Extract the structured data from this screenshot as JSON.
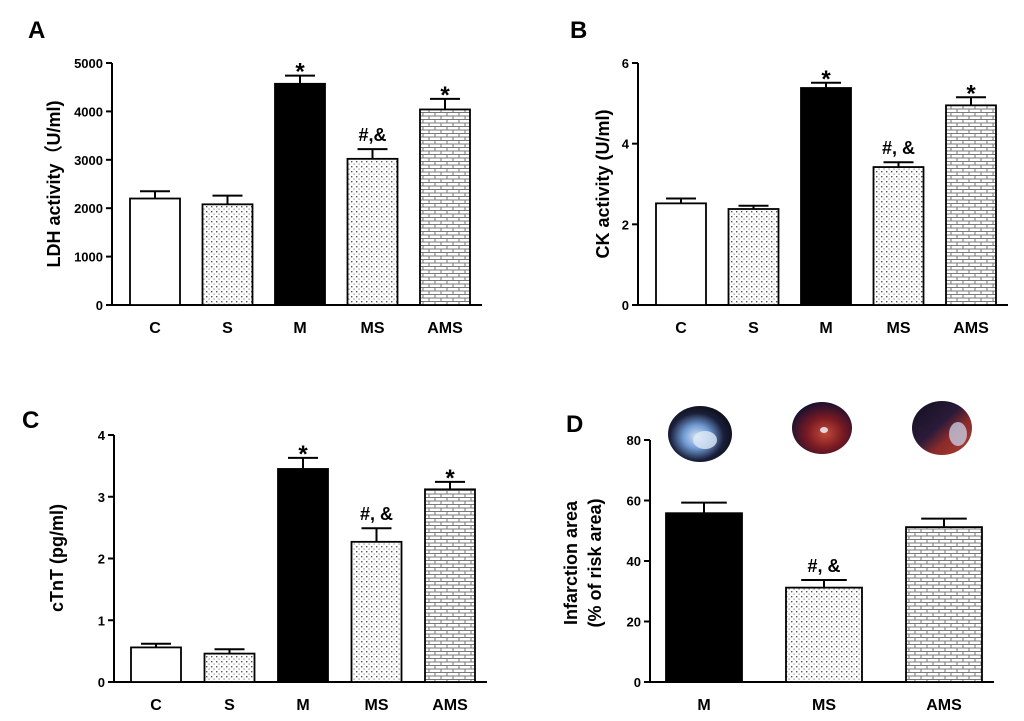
{
  "chart_data": [
    {
      "panel": "A",
      "type": "bar",
      "ylabel": "LDH activity（U/ml)",
      "categories": [
        "C",
        "S",
        "M",
        "MS",
        "AMS"
      ],
      "values": [
        2200,
        2080,
        4570,
        3020,
        4040
      ],
      "errors": [
        150,
        180,
        170,
        200,
        220
      ],
      "annotations": [
        "",
        "",
        "*",
        "#,&",
        "*"
      ],
      "ylim": [
        0,
        5000
      ],
      "yticks": [
        0,
        1000,
        2000,
        3000,
        4000,
        5000
      ],
      "fills": [
        "white",
        "dots",
        "black",
        "dots",
        "brick"
      ]
    },
    {
      "panel": "B",
      "type": "bar",
      "ylabel": "CK activity (U/ml)",
      "categories": [
        "C",
        "S",
        "M",
        "MS",
        "AMS"
      ],
      "values": [
        2.52,
        2.38,
        5.38,
        3.42,
        4.95
      ],
      "errors": [
        0.12,
        0.08,
        0.13,
        0.12,
        0.2
      ],
      "annotations": [
        "",
        "",
        "*",
        "#, &",
        "*"
      ],
      "ylim": [
        0,
        6
      ],
      "yticks": [
        0,
        2,
        4,
        6
      ],
      "fills": [
        "white",
        "dots",
        "black",
        "dots",
        "brick"
      ]
    },
    {
      "panel": "C",
      "type": "bar",
      "ylabel": "cTnT (pg/ml)",
      "categories": [
        "C",
        "S",
        "M",
        "MS",
        "AMS"
      ],
      "values": [
        0.56,
        0.46,
        3.45,
        2.27,
        3.12
      ],
      "errors": [
        0.06,
        0.07,
        0.18,
        0.22,
        0.12
      ],
      "annotations": [
        "",
        "",
        "*",
        "#, &",
        "*"
      ],
      "ylim": [
        0,
        4
      ],
      "yticks": [
        0,
        1,
        2,
        3,
        4
      ],
      "fills": [
        "white",
        "dots",
        "black",
        "dots",
        "brick"
      ]
    },
    {
      "panel": "D",
      "type": "bar",
      "ylabel": "Infarction area",
      "ylabel2": "(% of risk area)",
      "categories": [
        "M",
        "MS",
        "AMS"
      ],
      "values": [
        55.8,
        31.2,
        51.2
      ],
      "errors": [
        3.5,
        2.5,
        2.8
      ],
      "annotations": [
        "",
        "#, &",
        ""
      ],
      "ylim": [
        0,
        80
      ],
      "yticks": [
        0,
        20,
        40,
        60,
        80
      ],
      "fills": [
        "black",
        "dots",
        "brick"
      ],
      "photos": [
        "stained heart section M",
        "stained heart section MS",
        "stained heart section AMS"
      ]
    }
  ]
}
